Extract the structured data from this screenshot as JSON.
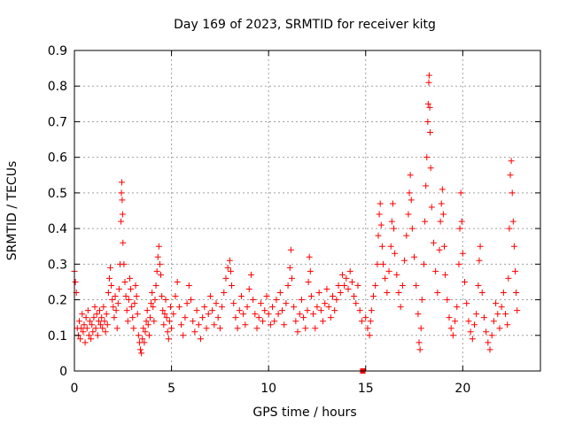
{
  "chart_data": {
    "type": "scatter",
    "title": "Day 169 of 2023, SRMTID for receiver kitg",
    "xlabel": "GPS time / hours",
    "ylabel": "SRMTID / TECUs",
    "xlim": [
      0,
      24
    ],
    "ylim": [
      0,
      0.9
    ],
    "xticks": [
      0,
      5,
      10,
      15,
      20
    ],
    "xtick_labels": [
      "0",
      "5",
      "10",
      "15",
      "20"
    ],
    "yticks": [
      0,
      0.1,
      0.2,
      0.3,
      0.4,
      0.5,
      0.6,
      0.7,
      0.8,
      0.9
    ],
    "ytick_labels": [
      "0",
      "0.1",
      "0.2",
      "0.3",
      "0.4",
      "0.5",
      "0.6",
      "0.7",
      "0.8",
      "0.9"
    ],
    "grid": true,
    "color": "#ff0000",
    "marker": "+",
    "series": [
      {
        "name": "SRMTID",
        "points": [
          [
            0.0,
            0.28
          ],
          [
            0.05,
            0.25
          ],
          [
            0.1,
            0.22
          ],
          [
            0.15,
            0.12
          ],
          [
            0.2,
            0.1
          ],
          [
            0.25,
            0.14
          ],
          [
            0.3,
            0.09
          ],
          [
            0.35,
            0.12
          ],
          [
            0.4,
            0.16
          ],
          [
            0.45,
            0.11
          ],
          [
            0.5,
            0.13
          ],
          [
            0.55,
            0.08
          ],
          [
            0.6,
            0.15
          ],
          [
            0.65,
            0.12
          ],
          [
            0.7,
            0.17
          ],
          [
            0.75,
            0.1
          ],
          [
            0.8,
            0.14
          ],
          [
            0.85,
            0.09
          ],
          [
            0.9,
            0.13
          ],
          [
            0.95,
            0.11
          ],
          [
            1.0,
            0.15
          ],
          [
            1.05,
            0.18
          ],
          [
            1.1,
            0.12
          ],
          [
            1.15,
            0.16
          ],
          [
            1.2,
            0.1
          ],
          [
            1.25,
            0.14
          ],
          [
            1.3,
            0.17
          ],
          [
            1.35,
            0.13
          ],
          [
            1.4,
            0.15
          ],
          [
            1.45,
            0.12
          ],
          [
            1.5,
            0.18
          ],
          [
            1.55,
            0.14
          ],
          [
            1.6,
            0.11
          ],
          [
            1.65,
            0.16
          ],
          [
            1.7,
            0.13
          ],
          [
            1.75,
            0.22
          ],
          [
            1.8,
            0.26
          ],
          [
            1.85,
            0.29
          ],
          [
            1.9,
            0.24
          ],
          [
            1.95,
            0.2
          ],
          [
            2.0,
            0.18
          ],
          [
            2.05,
            0.15
          ],
          [
            2.1,
            0.21
          ],
          [
            2.15,
            0.17
          ],
          [
            2.2,
            0.12
          ],
          [
            2.25,
            0.19
          ],
          [
            2.3,
            0.23
          ],
          [
            2.35,
            0.3
          ],
          [
            2.4,
            0.42
          ],
          [
            2.42,
            0.5
          ],
          [
            2.44,
            0.53
          ],
          [
            2.46,
            0.48
          ],
          [
            2.48,
            0.44
          ],
          [
            2.5,
            0.36
          ],
          [
            2.55,
            0.3
          ],
          [
            2.6,
            0.25
          ],
          [
            2.65,
            0.21
          ],
          [
            2.7,
            0.17
          ],
          [
            2.75,
            0.14
          ],
          [
            2.8,
            0.2
          ],
          [
            2.85,
            0.26
          ],
          [
            2.9,
            0.23
          ],
          [
            2.95,
            0.18
          ],
          [
            3.0,
            0.15
          ],
          [
            3.05,
            0.12
          ],
          [
            3.1,
            0.19
          ],
          [
            3.15,
            0.24
          ],
          [
            3.2,
            0.21
          ],
          [
            3.25,
            0.16
          ],
          [
            3.3,
            0.1
          ],
          [
            3.35,
            0.08
          ],
          [
            3.4,
            0.06
          ],
          [
            3.45,
            0.05
          ],
          [
            3.5,
            0.09
          ],
          [
            3.55,
            0.12
          ],
          [
            3.6,
            0.08
          ],
          [
            3.65,
            0.11
          ],
          [
            3.7,
            0.14
          ],
          [
            3.75,
            0.17
          ],
          [
            3.8,
            0.13
          ],
          [
            3.85,
            0.1
          ],
          [
            3.9,
            0.15
          ],
          [
            3.95,
            0.19
          ],
          [
            4.0,
            0.22
          ],
          [
            4.05,
            0.18
          ],
          [
            4.1,
            0.14
          ],
          [
            4.15,
            0.2
          ],
          [
            4.2,
            0.24
          ],
          [
            4.25,
            0.28
          ],
          [
            4.3,
            0.32
          ],
          [
            4.35,
            0.35
          ],
          [
            4.4,
            0.3
          ],
          [
            4.45,
            0.27
          ],
          [
            4.5,
            0.21
          ],
          [
            4.55,
            0.17
          ],
          [
            4.6,
            0.13
          ],
          [
            4.65,
            0.16
          ],
          [
            4.7,
            0.2
          ],
          [
            4.75,
            0.15
          ],
          [
            4.8,
            0.11
          ],
          [
            4.85,
            0.09
          ],
          [
            4.9,
            0.14
          ],
          [
            4.95,
            0.18
          ],
          [
            5.0,
            0.12
          ],
          [
            5.1,
            0.16
          ],
          [
            5.2,
            0.21
          ],
          [
            5.3,
            0.25
          ],
          [
            5.4,
            0.18
          ],
          [
            5.5,
            0.13
          ],
          [
            5.6,
            0.1
          ],
          [
            5.7,
            0.15
          ],
          [
            5.8,
            0.19
          ],
          [
            5.9,
            0.24
          ],
          [
            6.0,
            0.2
          ],
          [
            6.1,
            0.14
          ],
          [
            6.2,
            0.11
          ],
          [
            6.3,
            0.17
          ],
          [
            6.4,
            0.13
          ],
          [
            6.5,
            0.09
          ],
          [
            6.6,
            0.15
          ],
          [
            6.7,
            0.18
          ],
          [
            6.8,
            0.12
          ],
          [
            6.9,
            0.16
          ],
          [
            7.0,
            0.21
          ],
          [
            7.1,
            0.17
          ],
          [
            7.2,
            0.13
          ],
          [
            7.3,
            0.19
          ],
          [
            7.4,
            0.15
          ],
          [
            7.5,
            0.12
          ],
          [
            7.6,
            0.18
          ],
          [
            7.7,
            0.22
          ],
          [
            7.8,
            0.26
          ],
          [
            7.9,
            0.29
          ],
          [
            8.0,
            0.31
          ],
          [
            8.05,
            0.28
          ],
          [
            8.1,
            0.24
          ],
          [
            8.2,
            0.19
          ],
          [
            8.3,
            0.15
          ],
          [
            8.4,
            0.12
          ],
          [
            8.5,
            0.17
          ],
          [
            8.6,
            0.21
          ],
          [
            8.7,
            0.16
          ],
          [
            8.8,
            0.13
          ],
          [
            8.9,
            0.18
          ],
          [
            9.0,
            0.23
          ],
          [
            9.1,
            0.27
          ],
          [
            9.2,
            0.2
          ],
          [
            9.3,
            0.16
          ],
          [
            9.4,
            0.12
          ],
          [
            9.5,
            0.15
          ],
          [
            9.6,
            0.19
          ],
          [
            9.7,
            0.14
          ],
          [
            9.8,
            0.17
          ],
          [
            9.9,
            0.21
          ],
          [
            10.0,
            0.16
          ],
          [
            10.1,
            0.13
          ],
          [
            10.2,
            0.18
          ],
          [
            10.3,
            0.14
          ],
          [
            10.4,
            0.2
          ],
          [
            10.5,
            0.16
          ],
          [
            10.6,
            0.22
          ],
          [
            10.7,
            0.17
          ],
          [
            10.8,
            0.13
          ],
          [
            10.9,
            0.19
          ],
          [
            11.0,
            0.24
          ],
          [
            11.1,
            0.29
          ],
          [
            11.15,
            0.34
          ],
          [
            11.2,
            0.26
          ],
          [
            11.3,
            0.18
          ],
          [
            11.4,
            0.14
          ],
          [
            11.5,
            0.11
          ],
          [
            11.6,
            0.16
          ],
          [
            11.7,
            0.2
          ],
          [
            11.8,
            0.15
          ],
          [
            11.9,
            0.12
          ],
          [
            12.0,
            0.17
          ],
          [
            12.05,
            0.25
          ],
          [
            12.1,
            0.32
          ],
          [
            12.15,
            0.28
          ],
          [
            12.2,
            0.21
          ],
          [
            12.3,
            0.16
          ],
          [
            12.4,
            0.12
          ],
          [
            12.5,
            0.18
          ],
          [
            12.6,
            0.22
          ],
          [
            12.7,
            0.17
          ],
          [
            12.8,
            0.14
          ],
          [
            12.9,
            0.19
          ],
          [
            13.0,
            0.23
          ],
          [
            13.1,
            0.18
          ],
          [
            13.2,
            0.15
          ],
          [
            13.3,
            0.21
          ],
          [
            13.4,
            0.17
          ],
          [
            13.5,
            0.2
          ],
          [
            13.6,
            0.24
          ],
          [
            13.7,
            0.22
          ],
          [
            13.8,
            0.27
          ],
          [
            13.9,
            0.24
          ],
          [
            14.0,
            0.26
          ],
          [
            14.1,
            0.23
          ],
          [
            14.2,
            0.28
          ],
          [
            14.3,
            0.25
          ],
          [
            14.4,
            0.21
          ],
          [
            14.5,
            0.19
          ],
          [
            14.6,
            0.24
          ],
          [
            14.7,
            0.17
          ],
          [
            14.8,
            0.14
          ],
          [
            14.85,
            0.0
          ],
          [
            15.0,
            0.15
          ],
          [
            15.1,
            0.12
          ],
          [
            15.2,
            0.1
          ],
          [
            15.25,
            0.14
          ],
          [
            15.3,
            0.17
          ],
          [
            15.4,
            0.21
          ],
          [
            15.5,
            0.24
          ],
          [
            15.6,
            0.3
          ],
          [
            15.65,
            0.38
          ],
          [
            15.7,
            0.44
          ],
          [
            15.75,
            0.47
          ],
          [
            15.8,
            0.41
          ],
          [
            15.85,
            0.35
          ],
          [
            15.9,
            0.3
          ],
          [
            16.0,
            0.26
          ],
          [
            16.1,
            0.22
          ],
          [
            16.2,
            0.28
          ],
          [
            16.3,
            0.35
          ],
          [
            16.35,
            0.42
          ],
          [
            16.4,
            0.47
          ],
          [
            16.45,
            0.4
          ],
          [
            16.5,
            0.33
          ],
          [
            16.6,
            0.27
          ],
          [
            16.7,
            0.22
          ],
          [
            16.8,
            0.18
          ],
          [
            16.9,
            0.24
          ],
          [
            17.0,
            0.31
          ],
          [
            17.1,
            0.38
          ],
          [
            17.2,
            0.44
          ],
          [
            17.25,
            0.5
          ],
          [
            17.3,
            0.55
          ],
          [
            17.35,
            0.48
          ],
          [
            17.4,
            0.4
          ],
          [
            17.5,
            0.32
          ],
          [
            17.6,
            0.24
          ],
          [
            17.7,
            0.16
          ],
          [
            17.75,
            0.08
          ],
          [
            17.8,
            0.06
          ],
          [
            17.85,
            0.12
          ],
          [
            17.9,
            0.2
          ],
          [
            18.0,
            0.3
          ],
          [
            18.05,
            0.42
          ],
          [
            18.1,
            0.52
          ],
          [
            18.15,
            0.6
          ],
          [
            18.2,
            0.7
          ],
          [
            18.22,
            0.75
          ],
          [
            18.25,
            0.81
          ],
          [
            18.27,
            0.83
          ],
          [
            18.3,
            0.74
          ],
          [
            18.32,
            0.67
          ],
          [
            18.35,
            0.57
          ],
          [
            18.4,
            0.46
          ],
          [
            18.5,
            0.36
          ],
          [
            18.6,
            0.28
          ],
          [
            18.7,
            0.22
          ],
          [
            18.8,
            0.34
          ],
          [
            18.85,
            0.42
          ],
          [
            18.9,
            0.47
          ],
          [
            18.95,
            0.51
          ],
          [
            19.0,
            0.44
          ],
          [
            19.05,
            0.35
          ],
          [
            19.1,
            0.27
          ],
          [
            19.2,
            0.2
          ],
          [
            19.3,
            0.15
          ],
          [
            19.4,
            0.12
          ],
          [
            19.5,
            0.1
          ],
          [
            19.6,
            0.14
          ],
          [
            19.7,
            0.18
          ],
          [
            19.8,
            0.3
          ],
          [
            19.85,
            0.4
          ],
          [
            19.9,
            0.5
          ],
          [
            19.95,
            0.42
          ],
          [
            20.0,
            0.33
          ],
          [
            20.1,
            0.25
          ],
          [
            20.2,
            0.19
          ],
          [
            20.3,
            0.14
          ],
          [
            20.4,
            0.11
          ],
          [
            20.5,
            0.09
          ],
          [
            20.6,
            0.13
          ],
          [
            20.7,
            0.16
          ],
          [
            20.8,
            0.24
          ],
          [
            20.85,
            0.31
          ],
          [
            20.9,
            0.35
          ],
          [
            21.0,
            0.22
          ],
          [
            21.1,
            0.15
          ],
          [
            21.2,
            0.11
          ],
          [
            21.3,
            0.08
          ],
          [
            21.4,
            0.06
          ],
          [
            21.5,
            0.1
          ],
          [
            21.6,
            0.14
          ],
          [
            21.7,
            0.19
          ],
          [
            21.8,
            0.16
          ],
          [
            21.9,
            0.12
          ],
          [
            22.0,
            0.18
          ],
          [
            22.1,
            0.22
          ],
          [
            22.2,
            0.16
          ],
          [
            22.3,
            0.13
          ],
          [
            22.35,
            0.26
          ],
          [
            22.4,
            0.4
          ],
          [
            22.45,
            0.55
          ],
          [
            22.5,
            0.59
          ],
          [
            22.55,
            0.5
          ],
          [
            22.6,
            0.42
          ],
          [
            22.65,
            0.35
          ],
          [
            22.7,
            0.28
          ],
          [
            22.75,
            0.22
          ],
          [
            22.8,
            0.17
          ]
        ]
      }
    ]
  }
}
